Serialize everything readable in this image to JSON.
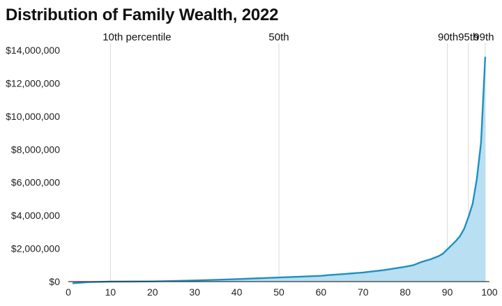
{
  "chart_data": {
    "type": "area",
    "title": "Distribution of Family Wealth, 2022",
    "xlabel": "",
    "ylabel": "",
    "xlim": [
      0,
      100
    ],
    "ylim": [
      0,
      14000000
    ],
    "x_ticks": [
      0,
      10,
      20,
      30,
      40,
      50,
      60,
      70,
      80,
      90,
      100
    ],
    "y_ticks": [
      0,
      2000000,
      4000000,
      6000000,
      8000000,
      10000000,
      12000000,
      14000000
    ],
    "y_tick_labels": [
      "$0",
      "$2,000,000",
      "$4,000,000",
      "$6,000,000",
      "$8,000,000",
      "$10,000,000",
      "$12,000,000",
      "$14,000,000"
    ],
    "grid": {
      "vertical": true,
      "horizontal": false
    },
    "annotations": [
      {
        "x": 10,
        "label": "10th percentile"
      },
      {
        "x": 50,
        "label": "50th"
      },
      {
        "x": 90,
        "label": "90th"
      },
      {
        "x": 95,
        "label": "95th"
      },
      {
        "x": 99,
        "label": "99th"
      }
    ],
    "colors": {
      "line": "#1f8fc2",
      "fill": "#b8dff2",
      "grid": "#d9d9d9"
    },
    "series": [
      {
        "x": [
          1,
          5,
          10,
          15,
          20,
          25,
          30,
          35,
          40,
          45,
          50,
          55,
          60,
          62,
          65,
          70,
          75,
          80,
          82,
          84,
          86,
          88,
          89,
          90,
          91,
          92,
          93,
          94,
          95,
          96,
          97,
          98,
          99
        ],
        "y": [
          -100000,
          -30000,
          0,
          5000,
          15000,
          40000,
          70000,
          110000,
          150000,
          200000,
          250000,
          300000,
          350000,
          400000,
          450000,
          550000,
          700000,
          900000,
          1000000,
          1200000,
          1350000,
          1550000,
          1700000,
          1950000,
          2200000,
          2450000,
          2750000,
          3200000,
          3900000,
          4700000,
          6200000,
          8400000,
          13600000
        ]
      }
    ]
  }
}
